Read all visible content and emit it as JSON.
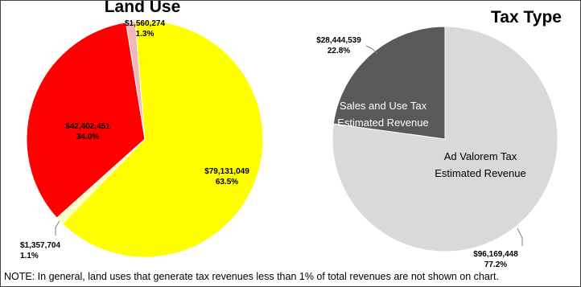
{
  "note": "NOTE: In general, land uses that generate tax revenues less than 1% of total revenues are not shown on chart.",
  "chart_data": [
    {
      "type": "pie",
      "title": "Land Use",
      "slices": [
        {
          "value": 79131049,
          "value_label": "$79,131,049",
          "percent": 63.5,
          "percent_label": "63.5%",
          "color": "#FFFF00"
        },
        {
          "value": 1357704,
          "value_label": "$1,357,704",
          "percent": 1.1,
          "percent_label": "1.1%",
          "color": "#FFFFC0"
        },
        {
          "value": 42402451,
          "value_label": "$42,402,451",
          "percent": 34.0,
          "percent_label": "34.0%",
          "color": "#FF0000"
        },
        {
          "value": 1560274,
          "value_label": "$1,560,274",
          "percent": 1.3,
          "percent_label": "1.3%",
          "color": "#F4B6B6"
        }
      ]
    },
    {
      "type": "pie",
      "title": "Tax Type",
      "slices": [
        {
          "name": "Ad Valorem Tax Estimated Revenue",
          "name_lines": [
            "Ad Valorem Tax",
            "Estimated Revenue"
          ],
          "value": 96169448,
          "value_label": "$96,169,448",
          "percent": 77.2,
          "percent_label": "77.2%",
          "color": "#D9D9D9",
          "text_color": "#000000"
        },
        {
          "name": "Sales and Use Tax Estimated Revenue",
          "name_lines": [
            "Sales and Use Tax",
            "Estimated Revenue"
          ],
          "value": 28444539,
          "value_label": "$28,444,539",
          "percent": 22.8,
          "percent_label": "22.8%",
          "color": "#595959",
          "text_color": "#FFFFFF"
        }
      ]
    }
  ]
}
